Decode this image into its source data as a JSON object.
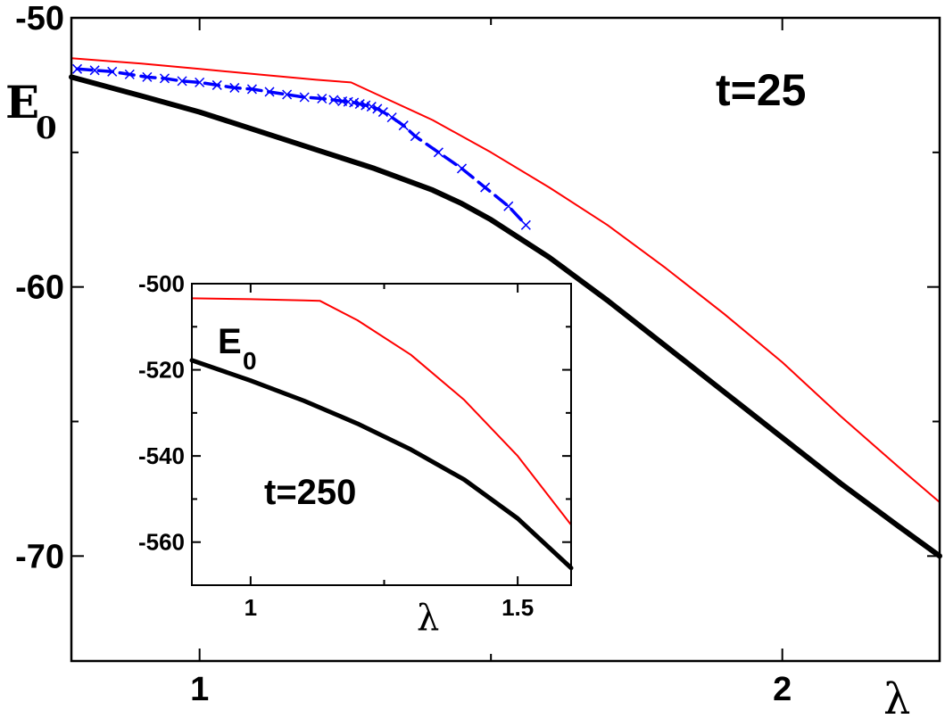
{
  "chart_data": [
    {
      "type": "line",
      "annotation": "t=25",
      "ylabel_base": "E",
      "ylabel_sub": "0",
      "xlabel": "λ",
      "xlim": [
        0.78,
        2.27
      ],
      "ylim": [
        -73.9,
        -50.0
      ],
      "xticks": [
        1,
        1.5,
        2
      ],
      "xtick_labels": [
        "1",
        "",
        "2"
      ],
      "yticks": [
        -50,
        -55,
        -60,
        -65,
        -70
      ],
      "ytick_labels": [
        "-50",
        "",
        "-60",
        "",
        "-70"
      ],
      "grid": false,
      "series": [
        {
          "color": "#000000",
          "style": "solid-thick",
          "x": [
            0.78,
            0.9,
            1.0,
            1.1,
            1.2,
            1.3,
            1.4,
            1.45,
            1.5,
            1.6,
            1.7,
            1.8,
            1.9,
            2.0,
            2.1,
            2.2,
            2.27
          ],
          "y": [
            -52.2,
            -52.9,
            -53.5,
            -54.2,
            -54.9,
            -55.6,
            -56.4,
            -56.9,
            -57.5,
            -58.9,
            -60.5,
            -62.2,
            -63.9,
            -65.6,
            -67.3,
            -68.9,
            -70.0
          ]
        },
        {
          "color": "#ff0000",
          "style": "solid-thin",
          "x": [
            0.78,
            0.9,
            1.0,
            1.1,
            1.2,
            1.26,
            1.3,
            1.4,
            1.5,
            1.6,
            1.7,
            1.8,
            1.9,
            2.0,
            2.1,
            2.2,
            2.27
          ],
          "y": [
            -51.5,
            -51.7,
            -51.9,
            -52.1,
            -52.3,
            -52.4,
            -52.8,
            -53.8,
            -55.0,
            -56.3,
            -57.7,
            -59.3,
            -61.0,
            -62.8,
            -64.8,
            -66.7,
            -68.0
          ]
        },
        {
          "color": "#0000ff",
          "style": "dashed-markers",
          "marker": "x",
          "x": [
            0.79,
            0.82,
            0.85,
            0.88,
            0.91,
            0.94,
            0.97,
            1.0,
            1.03,
            1.06,
            1.09,
            1.12,
            1.15,
            1.18,
            1.21,
            1.23,
            1.245,
            1.255,
            1.265,
            1.275,
            1.285,
            1.295,
            1.305,
            1.315,
            1.33,
            1.35,
            1.37,
            1.41,
            1.45,
            1.49,
            1.53,
            1.56
          ],
          "y": [
            -51.9,
            -51.95,
            -52.0,
            -52.1,
            -52.2,
            -52.25,
            -52.35,
            -52.4,
            -52.5,
            -52.6,
            -52.65,
            -52.75,
            -52.85,
            -52.95,
            -53.0,
            -53.05,
            -53.1,
            -53.12,
            -53.15,
            -53.2,
            -53.25,
            -53.3,
            -53.38,
            -53.5,
            -53.7,
            -54.0,
            -54.4,
            -55.0,
            -55.6,
            -56.3,
            -57.0,
            -57.7
          ]
        }
      ]
    },
    {
      "type": "line",
      "annotation": "t=250",
      "ylabel_base": "E",
      "ylabel_sub": "0",
      "xlabel": "λ",
      "xlim": [
        0.89,
        1.6
      ],
      "ylim": [
        -570,
        -500
      ],
      "xticks": [
        1,
        1.25,
        1.5
      ],
      "xtick_labels": [
        "1",
        "",
        "1.5"
      ],
      "yticks": [
        -500,
        -510,
        -520,
        -530,
        -540,
        -550,
        -560
      ],
      "ytick_labels": [
        "-500",
        "",
        "-520",
        "",
        "-540",
        "",
        "-560"
      ],
      "grid": false,
      "series": [
        {
          "color": "#000000",
          "style": "solid-thick",
          "x": [
            0.89,
            1.0,
            1.1,
            1.2,
            1.3,
            1.4,
            1.5,
            1.6
          ],
          "y": [
            -517.8,
            -522.5,
            -527.2,
            -532.5,
            -538.5,
            -545.5,
            -554.5,
            -566.0
          ]
        },
        {
          "color": "#ff0000",
          "style": "solid-thin",
          "x": [
            0.89,
            1.0,
            1.1,
            1.13,
            1.2,
            1.3,
            1.4,
            1.5,
            1.6
          ],
          "y": [
            -503.4,
            -503.6,
            -503.9,
            -504.0,
            -508.5,
            -516.5,
            -527.0,
            -540.0,
            -556.0
          ]
        }
      ]
    }
  ]
}
